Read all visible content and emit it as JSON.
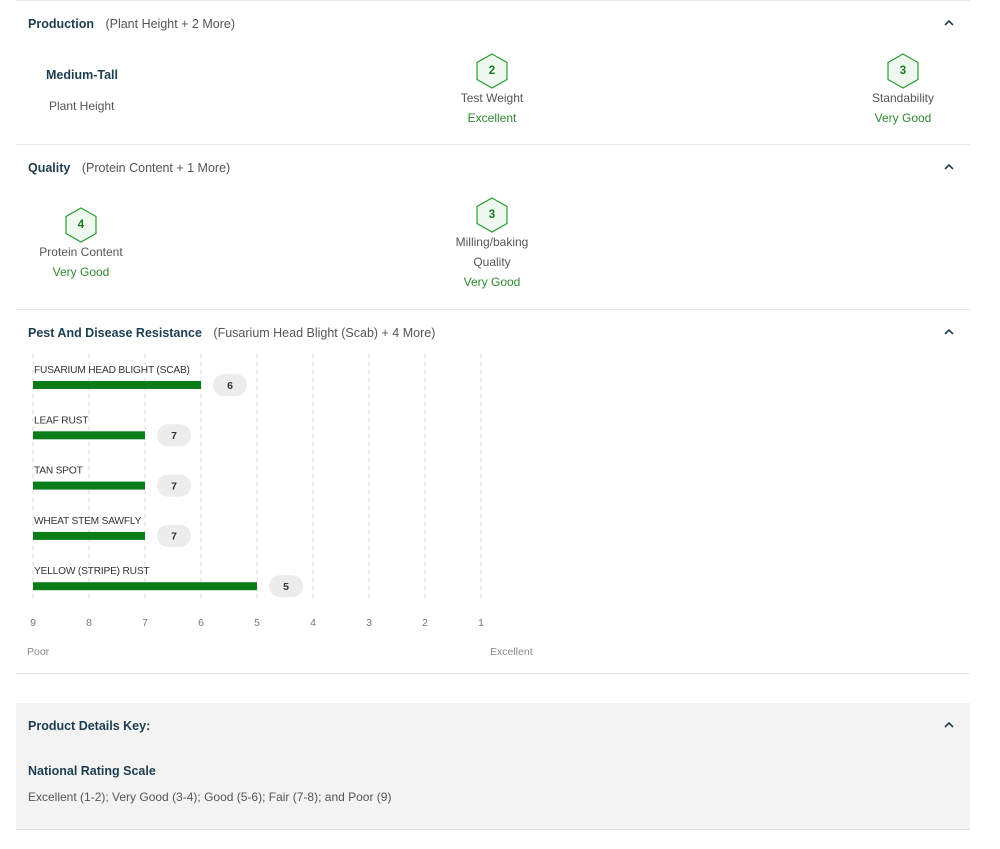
{
  "production": {
    "title": "Production",
    "subtitle": "(Plant Height + 2 More)",
    "plant_height": {
      "value": "Medium-Tall",
      "label": "Plant Height"
    },
    "test_weight": {
      "score": "2",
      "label": "Test Weight",
      "rating": "Excellent"
    },
    "standability": {
      "score": "3",
      "label": "Standability",
      "rating": "Very Good"
    }
  },
  "quality": {
    "title": "Quality",
    "subtitle": "(Protein Content + 1 More)",
    "protein_content": {
      "score": "4",
      "label": "Protein Content",
      "rating": "Very Good"
    },
    "milling": {
      "score": "3",
      "label_line1": "Milling/baking",
      "label_line2": "Quality",
      "rating": "Very Good"
    }
  },
  "pest": {
    "title": "Pest And Disease Resistance",
    "subtitle": "(Fusarium Head Blight (Scab) + 4 More)"
  },
  "chart_data": {
    "type": "bar",
    "orientation": "horizontal",
    "categories": [
      "FUSARIUM HEAD BLIGHT (SCAB)",
      "LEAF RUST",
      "TAN SPOT",
      "WHEAT STEM SAWFLY",
      "YELLOW (STRIPE) RUST"
    ],
    "values": [
      6,
      7,
      7,
      7,
      5
    ],
    "xlim": [
      9,
      1
    ],
    "xticks": [
      "9",
      "8",
      "7",
      "6",
      "5",
      "4",
      "3",
      "2",
      "1"
    ],
    "x_left_label": "Poor",
    "x_right_label": "Excellent",
    "grid": true,
    "bar_color": "#0a7d19"
  },
  "key": {
    "title": "Product Details Key:",
    "subtitle": "National Rating Scale",
    "text": "Excellent (1-2); Very Good (3-4); Good (5-6); Fair (7-8); and Poor (9)"
  },
  "colors": {
    "accent_green": "#157a1e",
    "hex_fill": "#eef8ee",
    "heading": "#1d3d50"
  },
  "icons": {
    "collapse": "chevron-up-icon",
    "score_badge": "hexagon-badge"
  }
}
